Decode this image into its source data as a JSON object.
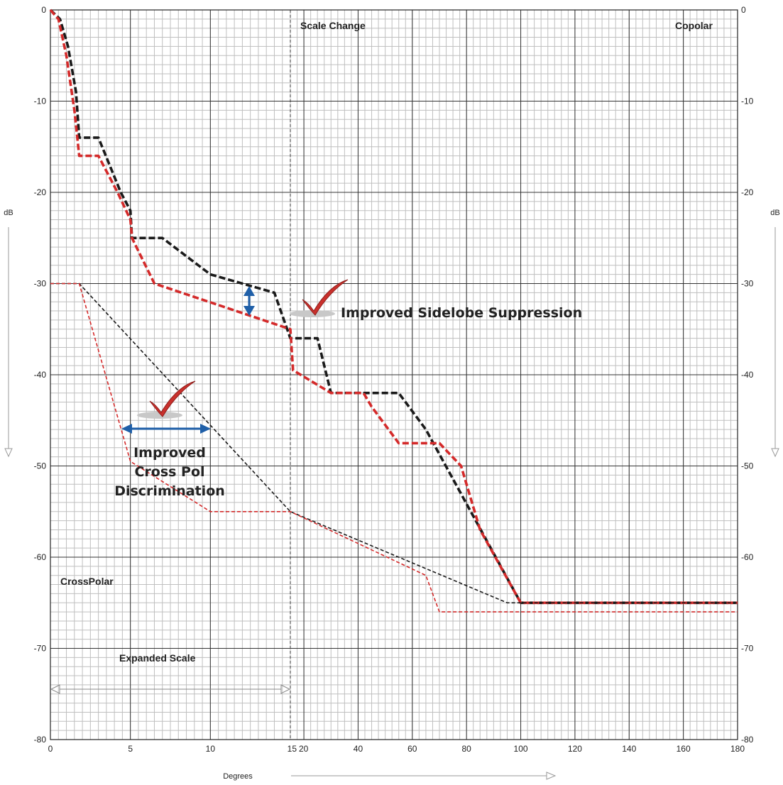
{
  "chart_data": {
    "type": "line",
    "ylabel": "dB",
    "xlabel": "Degrees",
    "ylim": [
      -80,
      0
    ],
    "y_ticks": [
      0,
      -10,
      -20,
      -30,
      -40,
      -50,
      -60,
      -70,
      -80
    ],
    "x_ticks_expanded": [
      0,
      5,
      10,
      15
    ],
    "x_ticks_normal": [
      20,
      40,
      60,
      80,
      100,
      120,
      140,
      160,
      180
    ],
    "x_segments": [
      {
        "scale": "expanded",
        "range": [
          0,
          15
        ]
      },
      {
        "scale": "normal",
        "range": [
          15,
          180
        ]
      }
    ],
    "grid": true,
    "series": [
      {
        "role": "copolar-black",
        "color": "#1a1a1a",
        "style": "thick-dash",
        "points": [
          [
            0,
            0
          ],
          [
            0.6,
            -1
          ],
          [
            1.1,
            -4
          ],
          [
            1.6,
            -9
          ],
          [
            1.8,
            -14
          ],
          [
            3,
            -14
          ],
          [
            4.4,
            -20
          ],
          [
            5,
            -22
          ],
          [
            5.1,
            -25
          ],
          [
            7,
            -25
          ],
          [
            10,
            -29
          ],
          [
            14,
            -31
          ],
          [
            15,
            -36
          ],
          [
            25,
            -36
          ],
          [
            30,
            -42
          ],
          [
            55,
            -42
          ],
          [
            65,
            -46
          ],
          [
            100,
            -65
          ],
          [
            180,
            -65
          ]
        ]
      },
      {
        "role": "copolar-red",
        "color": "#d42a2a",
        "style": "thick-dash",
        "points": [
          [
            0,
            0
          ],
          [
            0.5,
            -1
          ],
          [
            1,
            -5
          ],
          [
            1.5,
            -11
          ],
          [
            1.8,
            -16
          ],
          [
            3,
            -16
          ],
          [
            4.2,
            -20
          ],
          [
            5,
            -23
          ],
          [
            5.1,
            -25
          ],
          [
            6.5,
            -30
          ],
          [
            15,
            -35
          ],
          [
            16,
            -39.5
          ],
          [
            30,
            -42
          ],
          [
            42,
            -42
          ],
          [
            45,
            -43.5
          ],
          [
            55,
            -47.5
          ],
          [
            70,
            -47.5
          ],
          [
            78,
            -50
          ],
          [
            85,
            -57
          ],
          [
            100,
            -65
          ],
          [
            180,
            -65
          ]
        ]
      },
      {
        "role": "crosspolar-black",
        "color": "#1a1a1a",
        "style": "thin-dash",
        "points": [
          [
            0,
            -30
          ],
          [
            1.8,
            -30
          ],
          [
            15,
            -55
          ],
          [
            95,
            -65
          ],
          [
            180,
            -65
          ]
        ]
      },
      {
        "role": "crosspolar-red",
        "color": "#d42a2a",
        "style": "thin-dash",
        "points": [
          [
            0,
            -30
          ],
          [
            1.8,
            -30
          ],
          [
            5,
            -49.5
          ],
          [
            10,
            -55
          ],
          [
            15,
            -55
          ],
          [
            65,
            -62
          ],
          [
            70,
            -66
          ],
          [
            180,
            -66
          ]
        ]
      }
    ]
  },
  "annotations": {
    "scale_change": "Scale Change",
    "copolar": "Copolar",
    "crosspolar": "CrossPolar",
    "expanded_scale": "Expanded Scale",
    "sidelobe": "Improved Sidelobe Suppression",
    "crosspol_lines": [
      "Improved",
      "Cross Pol",
      "Discrimination"
    ]
  },
  "colors": {
    "grid_fine": "#bfbfbf",
    "grid_major": "#333333",
    "arrow_blue": "#1f5fa8",
    "check_red": "#c9302c"
  }
}
